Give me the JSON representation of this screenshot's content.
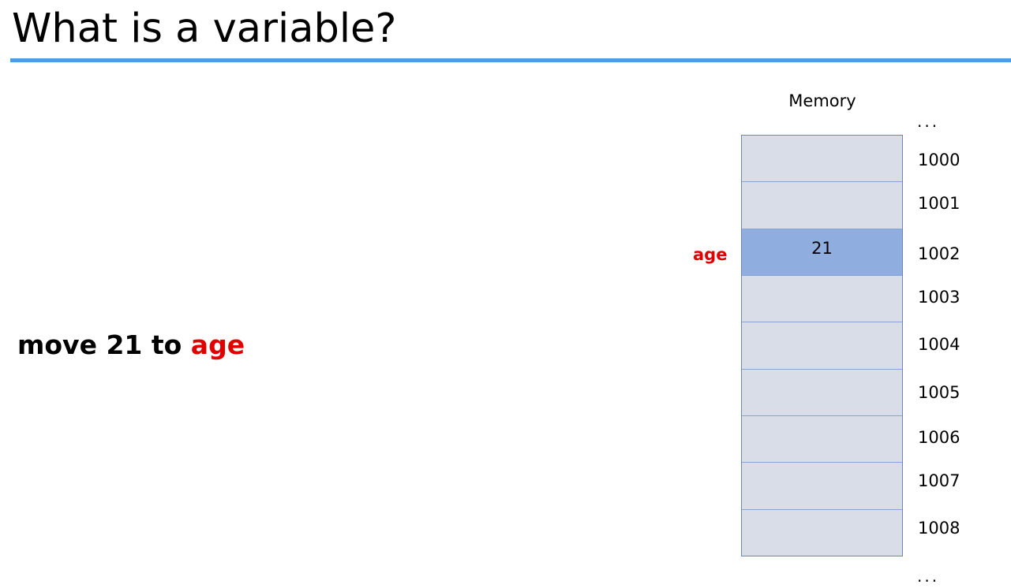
{
  "title": "What is a variable?",
  "statement": {
    "prefix": "move 21 to ",
    "variable": "age"
  },
  "memory": {
    "label": "Memory",
    "ellipsis_top": "...",
    "ellipsis_bottom": "...",
    "cells": [
      {
        "address": "1000",
        "value": ""
      },
      {
        "address": "1001",
        "value": ""
      },
      {
        "address": "1002",
        "value": "21",
        "variable": "age"
      },
      {
        "address": "1003",
        "value": ""
      },
      {
        "address": "1004",
        "value": ""
      },
      {
        "address": "1005",
        "value": ""
      },
      {
        "address": "1006",
        "value": ""
      },
      {
        "address": "1007",
        "value": ""
      },
      {
        "address": "1008",
        "value": ""
      }
    ]
  },
  "colors": {
    "accent_rule": "#4a9ded",
    "variable_text": "#e00000",
    "cell_fill": "#d8dde7",
    "highlight_fill": "#8fadde"
  }
}
